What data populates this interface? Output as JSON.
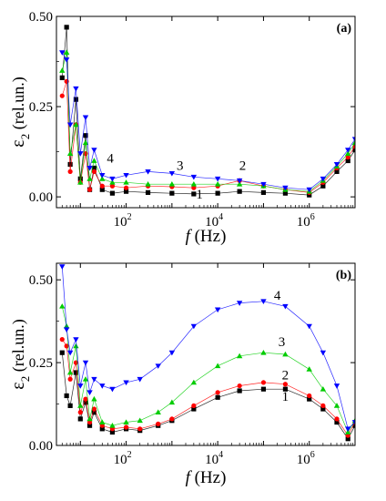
{
  "chart_data": [
    {
      "type": "scatter",
      "panel_label": "(a)",
      "xlabel_italic": "f",
      "xlabel_rest": " (Hz)",
      "ylabel_main": "ε",
      "ylabel_sub": "2",
      "ylabel_rest": " (rel.un.)",
      "x_scale": "log",
      "xlim": [
        3,
        10000000
      ],
      "ylim": [
        -0.03,
        0.5
      ],
      "x_ticks": [
        {
          "value": 100,
          "base": "10",
          "exp": "2"
        },
        {
          "value": 10000,
          "base": "10",
          "exp": "4"
        },
        {
          "value": 1000000,
          "base": "10",
          "exp": "6"
        }
      ],
      "y_ticks": [
        {
          "value": 0.0,
          "label": "0.00"
        },
        {
          "value": 0.25,
          "label": "0.25"
        },
        {
          "value": 0.5,
          "label": "0.50"
        }
      ],
      "grid": false,
      "annotations": [
        {
          "text": "1",
          "x": 4000,
          "y": -0.005
        },
        {
          "text": "2",
          "x": 35000,
          "y": 0.075
        },
        {
          "text": "3",
          "x": 1500,
          "y": 0.075
        },
        {
          "text": "4",
          "x": 45,
          "y": 0.095
        }
      ],
      "series": [
        {
          "curve": "1",
          "color": "#000000",
          "marker": "square",
          "x": [
            4,
            5,
            6,
            8,
            10,
            13,
            16,
            20,
            30,
            50,
            100,
            300,
            1000,
            3000,
            10000,
            30000,
            100000,
            300000,
            1000000,
            2000000,
            4000000,
            7000000,
            10000000
          ],
          "y": [
            0.33,
            0.47,
            0.09,
            0.27,
            0.05,
            0.17,
            0.02,
            0.08,
            0.02,
            0.01,
            0.015,
            0.012,
            0.01,
            0.008,
            0.01,
            0.015,
            0.012,
            0.01,
            0.005,
            0.03,
            0.07,
            0.1,
            0.13
          ]
        },
        {
          "curve": "2",
          "color": "#ff0000",
          "marker": "circle",
          "x": [
            4,
            5,
            6,
            8,
            10,
            13,
            16,
            20,
            30,
            50,
            100,
            300,
            1000,
            3000,
            10000,
            30000,
            100000,
            300000,
            1000000,
            2000000,
            4000000,
            7000000,
            10000000
          ],
          "y": [
            0.28,
            0.32,
            0.07,
            0.2,
            0.04,
            0.12,
            0.02,
            0.07,
            0.03,
            0.03,
            0.025,
            0.03,
            0.028,
            0.025,
            0.03,
            0.045,
            0.03,
            0.02,
            0.012,
            0.04,
            0.08,
            0.11,
            0.14
          ]
        },
        {
          "curve": "3",
          "color": "#00cc00",
          "marker": "triangle-up",
          "x": [
            4,
            5,
            6,
            8,
            10,
            13,
            16,
            20,
            30,
            50,
            100,
            300,
            1000,
            3000,
            10000,
            30000,
            100000,
            300000,
            1000000,
            2000000,
            4000000,
            7000000,
            10000000
          ],
          "y": [
            0.35,
            0.4,
            0.12,
            0.2,
            0.04,
            0.15,
            0.05,
            0.1,
            0.05,
            0.04,
            0.04,
            0.035,
            0.035,
            0.035,
            0.035,
            0.035,
            0.03,
            0.02,
            0.015,
            0.045,
            0.085,
            0.12,
            0.15
          ]
        },
        {
          "curve": "4",
          "color": "#0000ff",
          "marker": "triangle-down",
          "x": [
            4,
            5,
            6,
            8,
            10,
            13,
            16,
            20,
            30,
            50,
            100,
            300,
            1000,
            3000,
            10000,
            30000,
            100000,
            300000,
            1000000,
            2000000,
            4000000,
            7000000,
            10000000
          ],
          "y": [
            0.4,
            0.38,
            0.2,
            0.3,
            0.12,
            0.22,
            0.08,
            0.13,
            0.06,
            0.05,
            0.06,
            0.07,
            0.065,
            0.055,
            0.05,
            0.045,
            0.035,
            0.025,
            0.02,
            0.05,
            0.09,
            0.13,
            0.16
          ]
        }
      ]
    },
    {
      "type": "scatter",
      "panel_label": "(b)",
      "xlabel_italic": "f",
      "xlabel_rest": " (Hz)",
      "ylabel_main": "ε",
      "ylabel_sub": "2",
      "ylabel_rest": " (rel.un.)",
      "x_scale": "log",
      "xlim": [
        3,
        10000000
      ],
      "ylim": [
        0,
        0.55
      ],
      "x_ticks": [
        {
          "value": 100,
          "base": "10",
          "exp": "2"
        },
        {
          "value": 10000,
          "base": "10",
          "exp": "4"
        },
        {
          "value": 1000000,
          "base": "10",
          "exp": "6"
        }
      ],
      "y_ticks": [
        {
          "value": 0.0,
          "label": "0.00"
        },
        {
          "value": 0.25,
          "label": "0.25"
        },
        {
          "value": 0.5,
          "label": "0.50"
        }
      ],
      "grid": false,
      "annotations": [
        {
          "text": "1",
          "x": 300000,
          "y": 0.135
        },
        {
          "text": "2",
          "x": 300000,
          "y": 0.2
        },
        {
          "text": "3",
          "x": 250000,
          "y": 0.3
        },
        {
          "text": "4",
          "x": 200000,
          "y": 0.44
        }
      ],
      "series": [
        {
          "curve": "1",
          "color": "#000000",
          "marker": "square",
          "x": [
            4,
            5,
            6,
            8,
            10,
            13,
            16,
            20,
            30,
            50,
            100,
            200,
            500,
            1000,
            3000,
            10000,
            30000,
            100000,
            300000,
            1000000,
            2000000,
            4000000,
            7000000,
            10000000
          ],
          "y": [
            0.28,
            0.15,
            0.12,
            0.22,
            0.08,
            0.13,
            0.06,
            0.1,
            0.05,
            0.04,
            0.05,
            0.045,
            0.06,
            0.075,
            0.11,
            0.145,
            0.165,
            0.17,
            0.17,
            0.14,
            0.11,
            0.07,
            0.02,
            0.06
          ]
        },
        {
          "curve": "2",
          "color": "#ff0000",
          "marker": "circle",
          "x": [
            4,
            5,
            6,
            8,
            10,
            13,
            16,
            20,
            30,
            50,
            100,
            200,
            500,
            1000,
            3000,
            10000,
            30000,
            100000,
            300000,
            1000000,
            2000000,
            4000000,
            7000000,
            10000000
          ],
          "y": [
            0.32,
            0.3,
            0.2,
            0.25,
            0.1,
            0.14,
            0.07,
            0.11,
            0.06,
            0.05,
            0.055,
            0.05,
            0.065,
            0.08,
            0.12,
            0.16,
            0.18,
            0.19,
            0.185,
            0.15,
            0.12,
            0.08,
            0.03,
            0.07
          ]
        },
        {
          "curve": "3",
          "color": "#00cc00",
          "marker": "triangle-up",
          "x": [
            4,
            5,
            6,
            8,
            10,
            13,
            16,
            20,
            30,
            50,
            100,
            200,
            500,
            1000,
            3000,
            10000,
            30000,
            100000,
            300000,
            1000000,
            2000000,
            4000000,
            7000000,
            10000000
          ],
          "y": [
            0.42,
            0.36,
            0.22,
            0.3,
            0.12,
            0.2,
            0.08,
            0.14,
            0.07,
            0.06,
            0.07,
            0.075,
            0.1,
            0.13,
            0.19,
            0.24,
            0.27,
            0.28,
            0.275,
            0.23,
            0.17,
            0.12,
            0.04,
            0.075
          ]
        },
        {
          "curve": "4",
          "color": "#0000ff",
          "marker": "triangle-down",
          "x": [
            4,
            5,
            6,
            8,
            10,
            13,
            16,
            20,
            30,
            50,
            100,
            200,
            500,
            1000,
            3000,
            10000,
            30000,
            100000,
            300000,
            1000000,
            2000000,
            4000000,
            7000000,
            10000000
          ],
          "y": [
            0.54,
            0.35,
            0.28,
            0.32,
            0.18,
            0.25,
            0.16,
            0.2,
            0.18,
            0.17,
            0.19,
            0.2,
            0.24,
            0.28,
            0.36,
            0.41,
            0.43,
            0.435,
            0.42,
            0.36,
            0.28,
            0.18,
            0.05,
            0.07
          ]
        }
      ]
    }
  ]
}
